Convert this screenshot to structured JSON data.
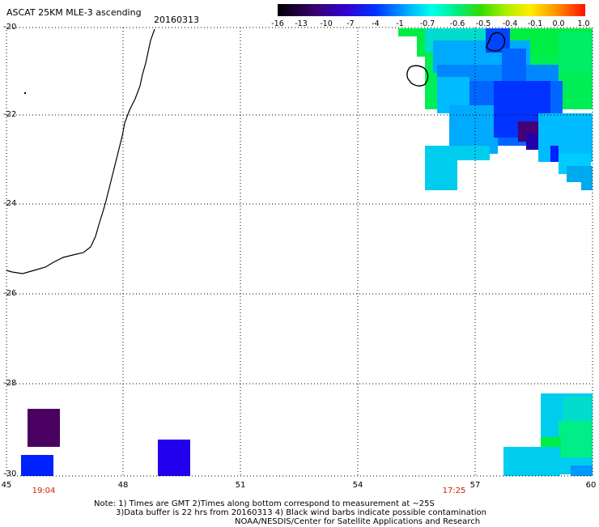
{
  "title": "ASCAT 25KM MLE-3 ascending",
  "date": "20160313",
  "colorbar": {
    "ticks": [
      "-16",
      "-13",
      "-10",
      "-7",
      "-4",
      "-1",
      "-0.7",
      "-0.6",
      "-0.5",
      "-0.4",
      "-0.1",
      "0.0",
      "1.0"
    ]
  },
  "axes": {
    "y_labels": [
      "-20",
      "-22",
      "-24",
      "-26",
      "-28",
      "-30"
    ],
    "x_labels": [
      "45",
      "48",
      "51",
      "54",
      "57",
      "60"
    ]
  },
  "times": [
    "19:04",
    "17:25"
  ],
  "notes": {
    "line1": "Note: 1) Times are GMT 2)Times along bottom correspond to measurement at ~25S",
    "line2": "3)Data buffer is 22 hrs from 20160313 4) Black wind barbs indicate possible contamination",
    "line3": "NOAA/NESDIS/Center for Satellite Applications and Research"
  },
  "colors": {
    "dark_purple": "#4a0060",
    "blue": "#2200ee",
    "cyan": "#00ccee",
    "green": "#00ee44"
  }
}
